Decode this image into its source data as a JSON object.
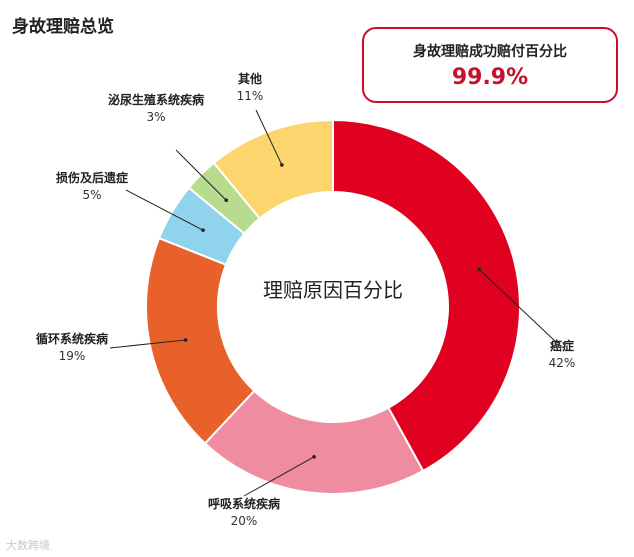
{
  "title": "身故理赔总览",
  "success_box": {
    "label": "身故理赔成功赔付百分比",
    "value": "99.9%"
  },
  "watermark": "大数跨境",
  "chart_data": {
    "type": "pie",
    "donut": true,
    "center_label": "理赔原因百分比",
    "slices": [
      {
        "name": "癌症",
        "value": 42,
        "label": "42%",
        "color": "#e0001f"
      },
      {
        "name": "呼吸系统疾病",
        "value": 20,
        "label": "20%",
        "color": "#f08ca0"
      },
      {
        "name": "循环系统疾病",
        "value": 19,
        "label": "19%",
        "color": "#e8602a"
      },
      {
        "name": "损伤及后遗症",
        "value": 5,
        "label": "5%",
        "color": "#8fd3ec"
      },
      {
        "name": "泌尿生殖系统疾病",
        "value": 3,
        "label": "3%",
        "color": "#b7dc8e"
      },
      {
        "name": "其他",
        "value": 11,
        "label": "11%",
        "color": "#fcd56e"
      }
    ]
  }
}
